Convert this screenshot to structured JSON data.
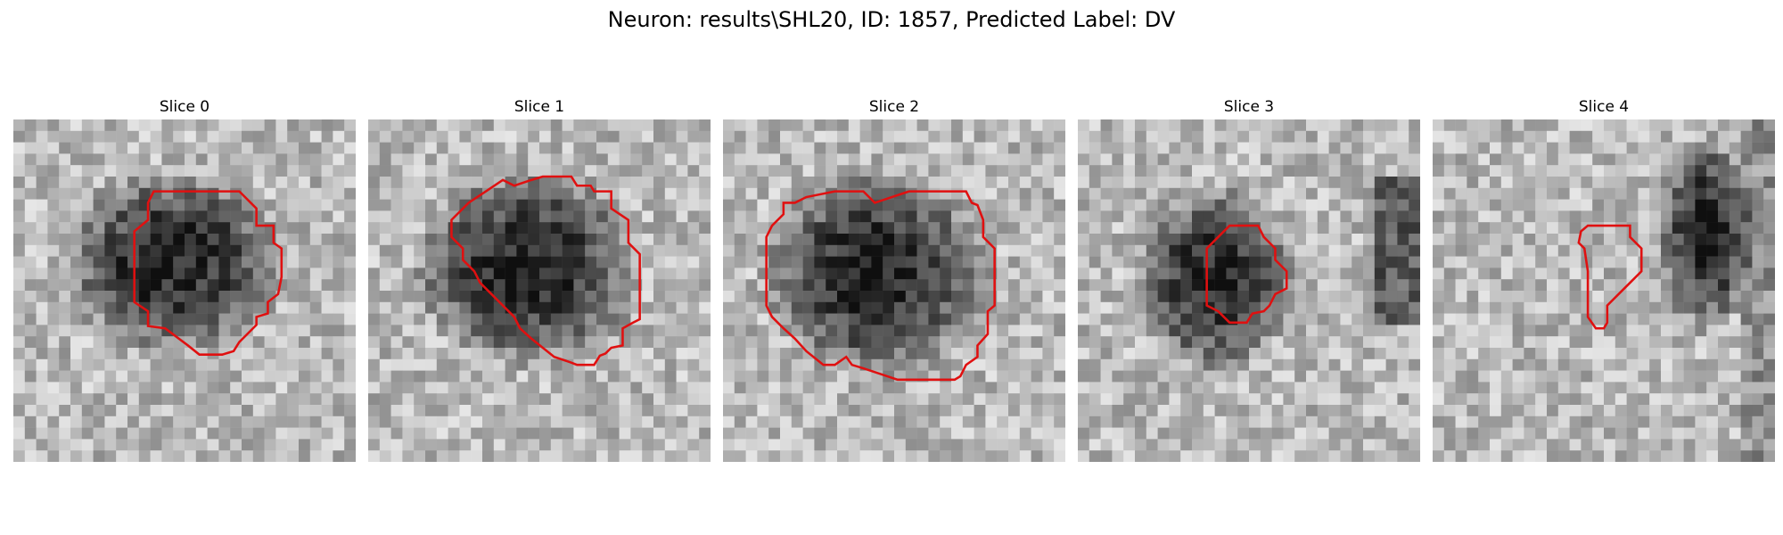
{
  "figure": {
    "title": "Neuron: results\\SHL20, ID: 1857, Predicted Label: DV",
    "contour_color": "#e01010"
  },
  "panels": [
    {
      "title": "Slice 0",
      "contour": [
        [
          15.6,
          6.3
        ],
        [
          19.8,
          6.3
        ],
        [
          21.3,
          7.8
        ],
        [
          21.3,
          9.3
        ],
        [
          22.8,
          9.3
        ],
        [
          22.8,
          10.8
        ],
        [
          23.5,
          11.3
        ],
        [
          23.5,
          13.8
        ],
        [
          23.2,
          15.3
        ],
        [
          22.3,
          16.0
        ],
        [
          22.3,
          17.0
        ],
        [
          21.3,
          17.3
        ],
        [
          21.3,
          18.0
        ],
        [
          19.8,
          19.5
        ],
        [
          19.3,
          20.3
        ],
        [
          18.3,
          20.6
        ],
        [
          16.3,
          20.6
        ],
        [
          15.3,
          19.8
        ],
        [
          13.3,
          18.3
        ],
        [
          11.8,
          18.1
        ],
        [
          11.8,
          16.8
        ],
        [
          10.6,
          16.0
        ],
        [
          10.6,
          9.8
        ],
        [
          11.8,
          8.8
        ],
        [
          11.8,
          7.3
        ],
        [
          12.3,
          6.3
        ]
      ],
      "blob": {
        "cx": 14,
        "cy": 12.5,
        "rx": 10,
        "ry": 8.5
      }
    },
    {
      "title": "Slice 1",
      "contour": [
        [
          15.3,
          5.0
        ],
        [
          17.8,
          5.0
        ],
        [
          18.3,
          5.8
        ],
        [
          19.5,
          5.8
        ],
        [
          19.8,
          6.3
        ],
        [
          21.3,
          6.3
        ],
        [
          21.3,
          7.8
        ],
        [
          22.8,
          8.8
        ],
        [
          22.8,
          10.8
        ],
        [
          23.8,
          11.8
        ],
        [
          23.8,
          17.5
        ],
        [
          23.2,
          17.8
        ],
        [
          22.3,
          18.3
        ],
        [
          22.3,
          19.8
        ],
        [
          21.3,
          20.0
        ],
        [
          20.8,
          20.5
        ],
        [
          20.3,
          20.7
        ],
        [
          19.8,
          21.5
        ],
        [
          18.3,
          21.5
        ],
        [
          17.8,
          21.3
        ],
        [
          16.3,
          20.8
        ],
        [
          15.3,
          20.0
        ],
        [
          14.3,
          19.2
        ],
        [
          13.3,
          18.3
        ],
        [
          12.8,
          17.3
        ],
        [
          11.8,
          16.3
        ],
        [
          10.8,
          15.3
        ],
        [
          9.8,
          14.3
        ],
        [
          9.3,
          13.3
        ],
        [
          8.3,
          12.3
        ],
        [
          8.3,
          11.3
        ],
        [
          7.3,
          10.3
        ],
        [
          7.3,
          8.8
        ],
        [
          8.8,
          7.3
        ],
        [
          10.3,
          6.3
        ],
        [
          11.8,
          5.3
        ],
        [
          12.8,
          5.8
        ],
        [
          14.3,
          5.3
        ]
      ],
      "blob": {
        "cx": 14,
        "cy": 13,
        "rx": 10.5,
        "ry": 9
      }
    },
    {
      "title": "Slice 2",
      "contour": [
        [
          9.8,
          6.3
        ],
        [
          12.3,
          6.3
        ],
        [
          13.3,
          7.3
        ],
        [
          16.3,
          6.3
        ],
        [
          21.3,
          6.3
        ],
        [
          21.8,
          7.3
        ],
        [
          22.3,
          7.5
        ],
        [
          22.8,
          8.8
        ],
        [
          22.8,
          10.3
        ],
        [
          23.8,
          11.3
        ],
        [
          23.8,
          16.3
        ],
        [
          23.2,
          16.8
        ],
        [
          23.2,
          18.8
        ],
        [
          22.3,
          19.8
        ],
        [
          22.3,
          20.8
        ],
        [
          21.3,
          21.5
        ],
        [
          20.8,
          22.5
        ],
        [
          20.3,
          22.8
        ],
        [
          15.3,
          22.8
        ],
        [
          13.8,
          22.3
        ],
        [
          12.3,
          21.8
        ],
        [
          11.3,
          21.5
        ],
        [
          10.8,
          20.8
        ],
        [
          9.8,
          21.5
        ],
        [
          8.8,
          21.5
        ],
        [
          7.3,
          20.3
        ],
        [
          6.3,
          19.2
        ],
        [
          5.3,
          18.3
        ],
        [
          4.3,
          17.3
        ],
        [
          3.8,
          16.3
        ],
        [
          3.8,
          10.3
        ],
        [
          4.3,
          9.3
        ],
        [
          5.3,
          8.3
        ],
        [
          5.3,
          7.3
        ],
        [
          6.3,
          7.3
        ],
        [
          7.3,
          6.8
        ]
      ],
      "blob": {
        "cx": 13.5,
        "cy": 13.5,
        "rx": 10.5,
        "ry": 9.5
      }
    },
    {
      "title": "Slice 3",
      "contour": [
        [
          13.3,
          9.3
        ],
        [
          15.8,
          9.3
        ],
        [
          16.3,
          10.3
        ],
        [
          16.8,
          10.8
        ],
        [
          17.3,
          11.3
        ],
        [
          17.3,
          12.3
        ],
        [
          18.3,
          13.3
        ],
        [
          18.3,
          14.8
        ],
        [
          17.3,
          15.3
        ],
        [
          16.8,
          16.3
        ],
        [
          16.3,
          16.8
        ],
        [
          15.3,
          17.0
        ],
        [
          14.8,
          17.8
        ],
        [
          13.3,
          17.8
        ],
        [
          12.3,
          16.8
        ],
        [
          11.3,
          16.3
        ],
        [
          11.3,
          13.3
        ],
        [
          11.3,
          11.3
        ],
        [
          12.3,
          10.3
        ]
      ],
      "blob": {
        "cx": 12,
        "cy": 14,
        "rx": 7.5,
        "ry": 8.5
      }
    },
    {
      "title": "Slice 4",
      "contour": [
        [
          13.6,
          9.3
        ],
        [
          17.3,
          9.3
        ],
        [
          17.3,
          10.3
        ],
        [
          17.8,
          10.8
        ],
        [
          18.3,
          11.3
        ],
        [
          18.3,
          13.3
        ],
        [
          17.3,
          14.3
        ],
        [
          16.3,
          15.3
        ],
        [
          15.3,
          16.3
        ],
        [
          15.3,
          17.8
        ],
        [
          15.0,
          18.3
        ],
        [
          14.3,
          18.3
        ],
        [
          13.6,
          17.3
        ],
        [
          13.6,
          13.3
        ],
        [
          13.3,
          11.3
        ],
        [
          12.8,
          10.8
        ],
        [
          13.0,
          9.8
        ]
      ],
      "blob": {
        "cx": 24,
        "cy": 10,
        "rx": 4.5,
        "ry": 9
      }
    }
  ]
}
